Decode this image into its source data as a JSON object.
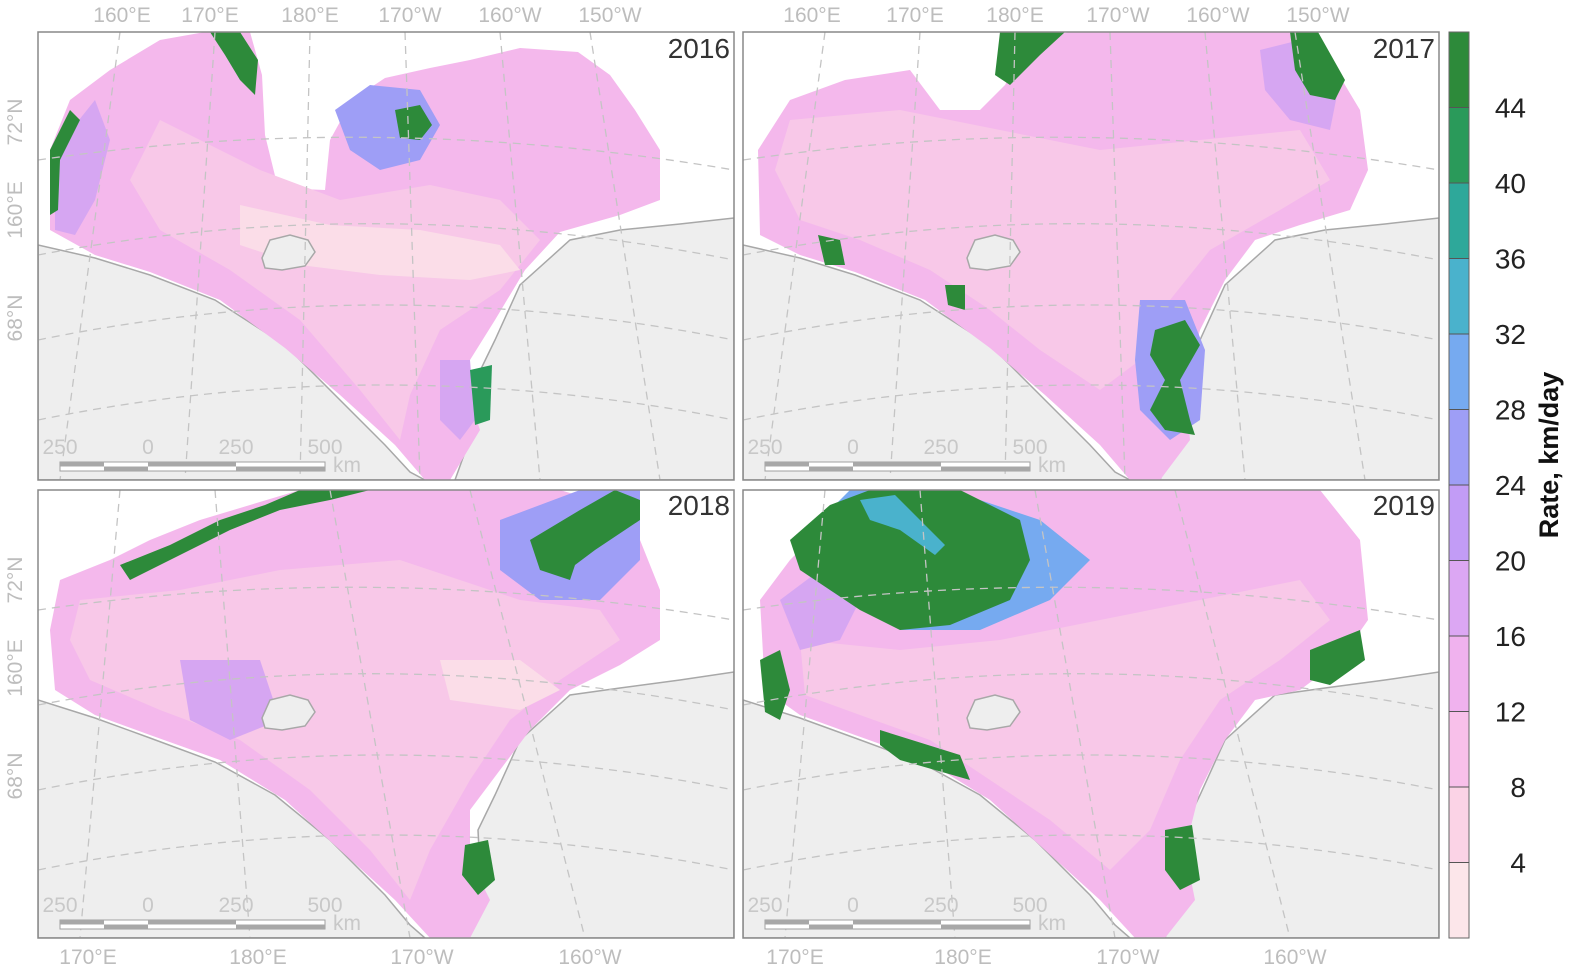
{
  "panels": [
    {
      "year": "2016",
      "top_lon_labels": [
        "160°E",
        "170°E",
        "180°E",
        "170°W",
        "160°W",
        "150°W"
      ],
      "lat_labels": [
        "72°N",
        "160°E",
        "68°N"
      ],
      "scale_labels": [
        "250",
        "0",
        "250",
        "500"
      ],
      "scale_unit": "km"
    },
    {
      "year": "2017",
      "top_lon_labels": [
        "160°E",
        "170°E",
        "180°E",
        "170°W",
        "160°W",
        "150°W"
      ],
      "scale_labels": [
        "250",
        "0",
        "250",
        "500"
      ],
      "scale_unit": "km"
    },
    {
      "year": "2018",
      "lat_labels": [
        "72°N",
        "160°E",
        "68°N"
      ],
      "bottom_lon_labels": [
        "170°E",
        "180°E",
        "170°W",
        "160°W"
      ],
      "scale_labels": [
        "250",
        "0",
        "250",
        "500"
      ],
      "scale_unit": "km"
    },
    {
      "year": "2019",
      "bottom_lon_labels": [
        "170°E",
        "180°E",
        "170°W",
        "160°W"
      ],
      "scale_labels": [
        "250",
        "0",
        "250",
        "500"
      ],
      "scale_unit": "km"
    }
  ],
  "legend": {
    "title": "Rate, km/day",
    "ticks": [
      "44",
      "40",
      "36",
      "32",
      "28",
      "24",
      "20",
      "16",
      "12",
      "8",
      "4"
    ],
    "colors_bottom_to_top": [
      "#fce6ea",
      "#fbd3e6",
      "#f8c0ea",
      "#f0b2ee",
      "#dca7f3",
      "#c29cf6",
      "#9e9ef6",
      "#76aaf0",
      "#4ab2cc",
      "#2ea89a",
      "#2a9a5a",
      "#2d8a3a"
    ]
  },
  "map_colors": {
    "land": "#eeeeee",
    "coast": "#a8a8a8",
    "grid": "#c4c4c4",
    "frame": "#888888"
  }
}
